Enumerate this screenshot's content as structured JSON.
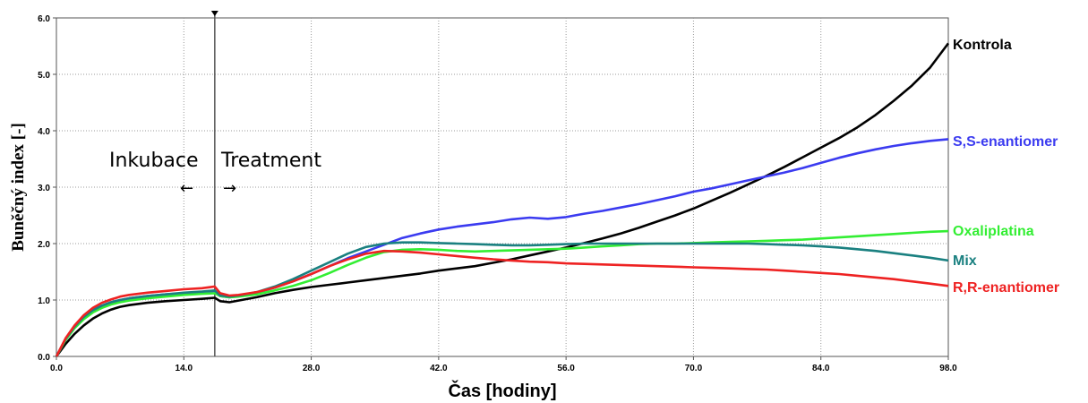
{
  "chart_data": {
    "type": "line",
    "xlabel": "Čas [hodiny]",
    "ylabel": "Buněčný index [-]",
    "xlim": [
      0,
      98
    ],
    "ylim": [
      0,
      6
    ],
    "x_ticks": [
      "0.0",
      "14.0",
      "28.0",
      "42.0",
      "56.0",
      "70.0",
      "84.0",
      "98.0"
    ],
    "y_ticks": [
      "0.0",
      "1.0",
      "2.0",
      "3.0",
      "4.0",
      "5.0",
      "6.0"
    ],
    "grid": true,
    "legend_placement": "right",
    "treatment_time": 17.4,
    "annotations": {
      "left": "Inkubace",
      "right": "Treatment",
      "left_arrow": "←",
      "right_arrow": "→"
    },
    "series": [
      {
        "name": "Kontrola",
        "color": "#000000",
        "x": [
          0,
          1,
          2,
          3,
          4,
          5,
          6,
          7,
          8,
          10,
          12,
          14,
          16,
          17.4,
          18,
          19,
          20,
          22,
          24,
          26,
          28,
          30,
          32,
          34,
          36,
          38,
          40,
          42,
          44,
          46,
          48,
          50,
          52,
          54,
          56,
          58,
          60,
          62,
          64,
          66,
          68,
          70,
          72,
          74,
          76,
          78,
          80,
          82,
          84,
          86,
          88,
          90,
          92,
          94,
          96,
          98
        ],
        "values": [
          0.0,
          0.22,
          0.4,
          0.55,
          0.67,
          0.76,
          0.83,
          0.88,
          0.91,
          0.95,
          0.98,
          1.0,
          1.02,
          1.04,
          0.98,
          0.96,
          0.99,
          1.05,
          1.12,
          1.18,
          1.23,
          1.27,
          1.31,
          1.35,
          1.39,
          1.43,
          1.47,
          1.52,
          1.56,
          1.6,
          1.66,
          1.72,
          1.79,
          1.86,
          1.93,
          2.01,
          2.09,
          2.18,
          2.28,
          2.39,
          2.5,
          2.62,
          2.76,
          2.9,
          3.05,
          3.2,
          3.36,
          3.53,
          3.7,
          3.87,
          4.06,
          4.28,
          4.53,
          4.8,
          5.12,
          5.55
        ]
      },
      {
        "name": "S,S-enantiomer",
        "color": "#3b3bf0",
        "x": [
          0,
          1,
          2,
          3,
          4,
          5,
          6,
          7,
          8,
          10,
          12,
          14,
          16,
          17.4,
          18,
          19,
          20,
          22,
          24,
          26,
          28,
          30,
          32,
          34,
          36,
          38,
          40,
          42,
          44,
          46,
          48,
          50,
          52,
          54,
          56,
          58,
          60,
          62,
          64,
          66,
          68,
          70,
          72,
          74,
          76,
          78,
          80,
          82,
          84,
          86,
          88,
          90,
          92,
          94,
          96,
          98
        ],
        "values": [
          0.0,
          0.3,
          0.52,
          0.7,
          0.82,
          0.9,
          0.96,
          1.0,
          1.03,
          1.07,
          1.1,
          1.12,
          1.14,
          1.16,
          1.07,
          1.05,
          1.07,
          1.13,
          1.22,
          1.33,
          1.46,
          1.6,
          1.74,
          1.86,
          1.98,
          2.1,
          2.18,
          2.25,
          2.3,
          2.34,
          2.38,
          2.43,
          2.46,
          2.44,
          2.47,
          2.53,
          2.58,
          2.64,
          2.7,
          2.77,
          2.84,
          2.92,
          2.98,
          3.05,
          3.12,
          3.19,
          3.26,
          3.34,
          3.43,
          3.52,
          3.6,
          3.67,
          3.73,
          3.78,
          3.82,
          3.85
        ]
      },
      {
        "name": "Oxaliplatina",
        "color": "#33ee33",
        "x": [
          0,
          1,
          2,
          3,
          4,
          5,
          6,
          7,
          8,
          10,
          12,
          14,
          16,
          17.4,
          18,
          19,
          20,
          22,
          24,
          26,
          28,
          30,
          32,
          34,
          36,
          38,
          40,
          42,
          44,
          46,
          48,
          50,
          52,
          54,
          56,
          58,
          60,
          62,
          64,
          66,
          68,
          70,
          72,
          74,
          76,
          78,
          80,
          82,
          84,
          86,
          88,
          90,
          92,
          94,
          96,
          98
        ],
        "values": [
          0.0,
          0.29,
          0.5,
          0.66,
          0.78,
          0.86,
          0.92,
          0.96,
          0.99,
          1.03,
          1.06,
          1.09,
          1.11,
          1.12,
          1.07,
          1.05,
          1.06,
          1.1,
          1.17,
          1.25,
          1.35,
          1.48,
          1.62,
          1.75,
          1.85,
          1.89,
          1.9,
          1.89,
          1.87,
          1.86,
          1.87,
          1.88,
          1.89,
          1.9,
          1.91,
          1.93,
          1.95,
          1.97,
          1.99,
          2.0,
          2.0,
          2.01,
          2.02,
          2.03,
          2.04,
          2.05,
          2.06,
          2.07,
          2.09,
          2.11,
          2.13,
          2.15,
          2.17,
          2.19,
          2.21,
          2.22
        ]
      },
      {
        "name": "Mix",
        "color": "#1a8080",
        "x": [
          0,
          1,
          2,
          3,
          4,
          5,
          6,
          7,
          8,
          10,
          12,
          14,
          16,
          17.4,
          18,
          19,
          20,
          22,
          24,
          26,
          28,
          30,
          32,
          34,
          36,
          38,
          40,
          42,
          44,
          46,
          48,
          50,
          52,
          54,
          56,
          58,
          60,
          62,
          64,
          66,
          68,
          70,
          72,
          74,
          76,
          78,
          80,
          82,
          84,
          86,
          88,
          90,
          92,
          94,
          96,
          98
        ],
        "values": [
          0.0,
          0.31,
          0.53,
          0.7,
          0.82,
          0.9,
          0.96,
          1.0,
          1.03,
          1.07,
          1.1,
          1.13,
          1.15,
          1.17,
          1.08,
          1.06,
          1.08,
          1.14,
          1.24,
          1.37,
          1.52,
          1.67,
          1.82,
          1.94,
          2.0,
          2.02,
          2.02,
          2.01,
          2.0,
          1.99,
          1.98,
          1.97,
          1.97,
          1.98,
          1.99,
          2.0,
          2.0,
          2.0,
          2.0,
          2.0,
          2.0,
          2.0,
          2.0,
          2.0,
          2.0,
          1.99,
          1.98,
          1.97,
          1.95,
          1.93,
          1.9,
          1.87,
          1.83,
          1.79,
          1.75,
          1.7
        ]
      },
      {
        "name": "R,R-enantiomer",
        "color": "#ee2222",
        "x": [
          0,
          1,
          2,
          3,
          4,
          5,
          6,
          7,
          8,
          10,
          12,
          14,
          16,
          17.4,
          18,
          19,
          20,
          22,
          24,
          26,
          28,
          30,
          32,
          34,
          36,
          38,
          40,
          42,
          44,
          46,
          48,
          50,
          52,
          54,
          56,
          58,
          60,
          62,
          64,
          66,
          68,
          70,
          72,
          74,
          76,
          78,
          80,
          82,
          84,
          86,
          88,
          90,
          92,
          94,
          96,
          98
        ],
        "values": [
          0.0,
          0.32,
          0.55,
          0.73,
          0.86,
          0.95,
          1.01,
          1.06,
          1.09,
          1.13,
          1.16,
          1.19,
          1.21,
          1.24,
          1.12,
          1.08,
          1.09,
          1.14,
          1.22,
          1.33,
          1.46,
          1.6,
          1.72,
          1.82,
          1.87,
          1.86,
          1.84,
          1.81,
          1.78,
          1.75,
          1.72,
          1.7,
          1.68,
          1.67,
          1.65,
          1.64,
          1.63,
          1.62,
          1.61,
          1.6,
          1.59,
          1.58,
          1.57,
          1.56,
          1.55,
          1.54,
          1.52,
          1.5,
          1.48,
          1.46,
          1.43,
          1.4,
          1.37,
          1.33,
          1.29,
          1.25
        ]
      }
    ]
  }
}
